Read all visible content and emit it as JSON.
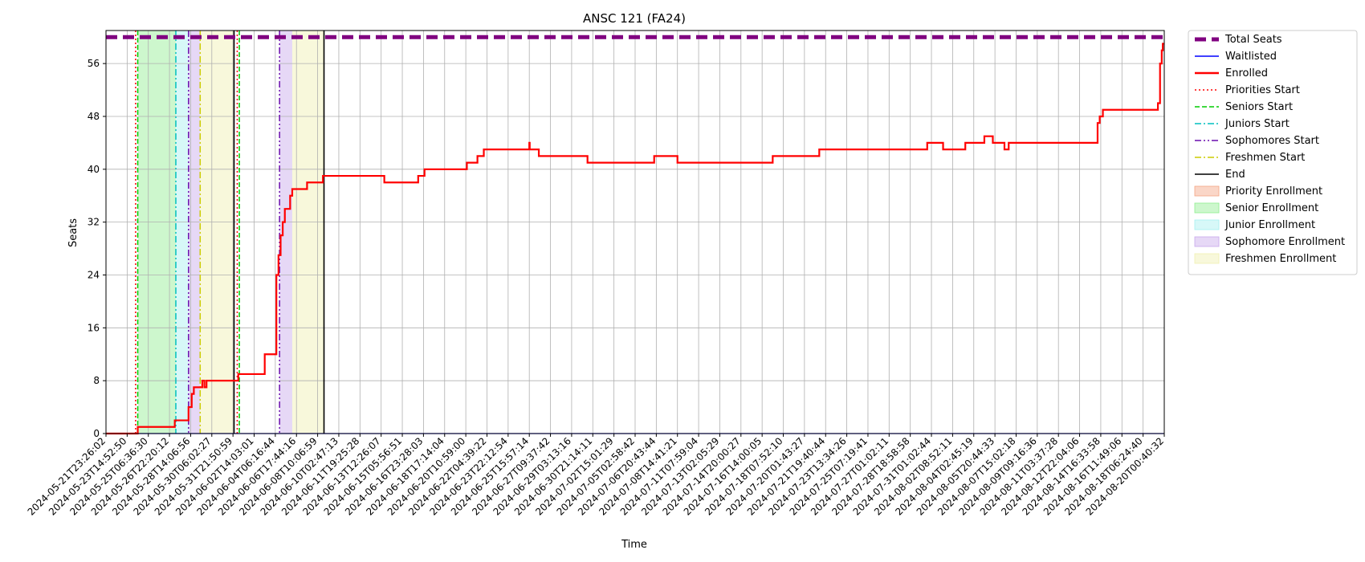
{
  "chart_data": {
    "type": "line",
    "title": "ANSC 121 (FA24)",
    "xlabel": "Time",
    "ylabel": "Seats",
    "ylim": [
      0,
      61
    ],
    "yticks": [
      0,
      8,
      16,
      24,
      32,
      40,
      48,
      56
    ],
    "grid": true,
    "legend_placement": "outside-right",
    "xtick_labels": [
      "2024-05-21T23:26:02",
      "2024-05-23T14:52:50",
      "2024-05-25T06:36:30",
      "2024-05-26T22:20:12",
      "2024-05-28T14:06:56",
      "2024-05-30T06:02:27",
      "2024-05-31T21:50:59",
      "2024-06-02T14:03:01",
      "2024-06-04T06:16:44",
      "2024-06-06T17:44:16",
      "2024-06-08T10:06:59",
      "2024-06-10T02:47:13",
      "2024-06-11T19:25:28",
      "2024-06-13T12:26:07",
      "2024-06-15T05:56:51",
      "2024-06-16T23:28:03",
      "2024-06-18T17:14:04",
      "2024-06-20T10:59:00",
      "2024-06-22T04:39:22",
      "2024-06-23T22:12:54",
      "2024-06-25T15:57:14",
      "2024-06-27T09:37:42",
      "2024-06-29T03:13:16",
      "2024-06-30T21:14:11",
      "2024-07-02T15:01:29",
      "2024-07-05T02:58:42",
      "2024-07-06T20:43:44",
      "2024-07-08T14:41:21",
      "2024-07-11T07:59:04",
      "2024-07-13T02:05:29",
      "2024-07-14T20:00:27",
      "2024-07-16T14:00:05",
      "2024-07-18T07:52:10",
      "2024-07-20T01:43:27",
      "2024-07-21T19:40:44",
      "2024-07-23T13:34:26",
      "2024-07-25T07:19:41",
      "2024-07-27T01:02:11",
      "2024-07-28T18:58:58",
      "2024-07-31T01:02:44",
      "2024-08-02T08:52:11",
      "2024-08-04T02:45:19",
      "2024-08-05T20:44:33",
      "2024-08-07T15:02:18",
      "2024-08-09T09:16:36",
      "2024-08-11T03:37:28",
      "2024-08-12T22:04:06",
      "2024-08-14T16:33:58",
      "2024-08-16T11:49:06",
      "2024-08-18T06:24:40",
      "2024-08-20T00:40:32"
    ],
    "x_range": [
      0,
      50
    ],
    "series": [
      {
        "name": "Total Seats",
        "style": "dashed-thick",
        "color": "#800080",
        "values": [
          [
            0,
            60
          ],
          [
            50,
            60
          ]
        ]
      },
      {
        "name": "Waitlisted",
        "style": "solid",
        "color": "#0000ff",
        "values": [
          [
            0,
            0
          ],
          [
            50,
            0
          ]
        ]
      },
      {
        "name": "Enrolled",
        "style": "step",
        "color": "#ff0000",
        "values": [
          [
            0,
            0
          ],
          [
            1.5,
            0
          ],
          [
            1.5,
            1
          ],
          [
            3.25,
            1
          ],
          [
            3.25,
            2
          ],
          [
            3.9,
            2
          ],
          [
            3.9,
            4
          ],
          [
            4.05,
            4
          ],
          [
            4.05,
            6
          ],
          [
            4.15,
            6
          ],
          [
            4.15,
            7
          ],
          [
            4.55,
            7
          ],
          [
            4.55,
            8
          ],
          [
            4.65,
            8
          ],
          [
            4.65,
            7
          ],
          [
            4.75,
            7
          ],
          [
            4.75,
            8
          ],
          [
            6.25,
            8
          ],
          [
            6.25,
            9
          ],
          [
            7.5,
            9
          ],
          [
            7.5,
            12
          ],
          [
            8.05,
            12
          ],
          [
            8.05,
            24
          ],
          [
            8.15,
            24
          ],
          [
            8.15,
            27
          ],
          [
            8.25,
            27
          ],
          [
            8.25,
            30
          ],
          [
            8.35,
            30
          ],
          [
            8.35,
            32
          ],
          [
            8.45,
            32
          ],
          [
            8.45,
            34
          ],
          [
            8.7,
            34
          ],
          [
            8.7,
            36
          ],
          [
            8.8,
            36
          ],
          [
            8.8,
            37
          ],
          [
            9.5,
            37
          ],
          [
            9.5,
            38
          ],
          [
            10.25,
            38
          ],
          [
            10.25,
            39
          ],
          [
            13.15,
            39
          ],
          [
            13.15,
            38
          ],
          [
            14.75,
            38
          ],
          [
            14.75,
            39
          ],
          [
            15.05,
            39
          ],
          [
            15.05,
            40
          ],
          [
            17.05,
            40
          ],
          [
            17.05,
            41
          ],
          [
            17.55,
            41
          ],
          [
            17.55,
            42
          ],
          [
            17.85,
            42
          ],
          [
            17.85,
            43
          ],
          [
            20,
            43
          ],
          [
            20,
            44
          ],
          [
            20.02,
            44
          ],
          [
            20.02,
            43
          ],
          [
            20.45,
            43
          ],
          [
            20.45,
            42
          ],
          [
            22.75,
            42
          ],
          [
            22.75,
            41
          ],
          [
            25.9,
            41
          ],
          [
            25.9,
            42
          ],
          [
            27,
            42
          ],
          [
            27,
            41
          ],
          [
            31.5,
            41
          ],
          [
            31.5,
            42
          ],
          [
            33.7,
            42
          ],
          [
            33.7,
            43
          ],
          [
            38.8,
            43
          ],
          [
            38.8,
            44
          ],
          [
            39.55,
            44
          ],
          [
            39.55,
            43
          ],
          [
            40.6,
            43
          ],
          [
            40.6,
            44
          ],
          [
            41.5,
            44
          ],
          [
            41.5,
            45
          ],
          [
            41.9,
            45
          ],
          [
            41.9,
            44
          ],
          [
            42.45,
            44
          ],
          [
            42.45,
            43
          ],
          [
            42.65,
            43
          ],
          [
            42.65,
            44
          ],
          [
            46.85,
            44
          ],
          [
            46.85,
            47
          ],
          [
            46.95,
            47
          ],
          [
            46.95,
            48
          ],
          [
            47.1,
            48
          ],
          [
            47.1,
            49
          ],
          [
            49.7,
            49
          ],
          [
            49.7,
            50
          ],
          [
            49.8,
            50
          ],
          [
            49.8,
            56
          ],
          [
            49.88,
            56
          ],
          [
            49.88,
            58
          ],
          [
            49.93,
            58
          ],
          [
            49.93,
            59
          ],
          [
            50,
            59
          ]
        ]
      }
    ],
    "vertical_markers": [
      {
        "name": "Priorities Start",
        "style": "dotted",
        "color": "#ff0000",
        "x": [
          1.4,
          6.2
        ]
      },
      {
        "name": "Seniors Start",
        "style": "dashed",
        "color": "#00cc00",
        "x": [
          1.5,
          6.3
        ]
      },
      {
        "name": "Juniors Start",
        "style": "dashdot",
        "color": "#00bfbf",
        "x": [
          3.3
        ]
      },
      {
        "name": "Sophomores Start",
        "style": "dashdotdot",
        "color": "#6a0dad",
        "x": [
          3.9,
          8.2
        ]
      },
      {
        "name": "Freshmen Start",
        "style": "dashdot",
        "color": "#cccc00",
        "x": [
          4.45
        ]
      },
      {
        "name": "End",
        "style": "solid",
        "color": "#000000",
        "x": [
          6.05,
          10.3
        ]
      }
    ],
    "spans": [
      {
        "name": "Priority Enrollment",
        "color": "#f4a582",
        "ranges": []
      },
      {
        "name": "Senior Enrollment",
        "color": "#90ee90",
        "ranges": [
          [
            1.5,
            3.3
          ],
          [
            6.3,
            6.3
          ]
        ]
      },
      {
        "name": "Junior Enrollment",
        "color": "#a6f0f0",
        "ranges": [
          [
            3.3,
            3.9
          ]
        ]
      },
      {
        "name": "Sophomore Enrollment",
        "color": "#c8a8ec",
        "ranges": [
          [
            3.9,
            4.45
          ],
          [
            8.2,
            8.8
          ]
        ]
      },
      {
        "name": "Freshmen Enrollment",
        "color": "#f0f0b0",
        "ranges": [
          [
            4.45,
            6.05
          ],
          [
            8.8,
            10.3
          ]
        ]
      }
    ],
    "legend": [
      {
        "label": "Total Seats",
        "kind": "line",
        "color": "#800080",
        "style": "dashed-thick"
      },
      {
        "label": "Waitlisted",
        "kind": "line",
        "color": "#0000ff",
        "style": "solid"
      },
      {
        "label": "Enrolled",
        "kind": "line",
        "color": "#ff0000",
        "style": "solid-thick"
      },
      {
        "label": "Priorities Start",
        "kind": "line",
        "color": "#ff0000",
        "style": "dotted"
      },
      {
        "label": "Seniors Start",
        "kind": "line",
        "color": "#00cc00",
        "style": "dashed"
      },
      {
        "label": "Juniors Start",
        "kind": "line",
        "color": "#00bfbf",
        "style": "dashdot"
      },
      {
        "label": "Sophomores Start",
        "kind": "line",
        "color": "#6a0dad",
        "style": "dashdotdot"
      },
      {
        "label": "Freshmen Start",
        "kind": "line",
        "color": "#cccc00",
        "style": "dashdot"
      },
      {
        "label": "End",
        "kind": "line",
        "color": "#000000",
        "style": "solid"
      },
      {
        "label": "Priority Enrollment",
        "kind": "patch",
        "color": "#f4a582"
      },
      {
        "label": "Senior Enrollment",
        "kind": "patch",
        "color": "#90ee90"
      },
      {
        "label": "Junior Enrollment",
        "kind": "patch",
        "color": "#a6f0f0"
      },
      {
        "label": "Sophomore Enrollment",
        "kind": "patch",
        "color": "#c8a8ec"
      },
      {
        "label": "Freshmen Enrollment",
        "kind": "patch",
        "color": "#f0f0b0"
      }
    ]
  }
}
